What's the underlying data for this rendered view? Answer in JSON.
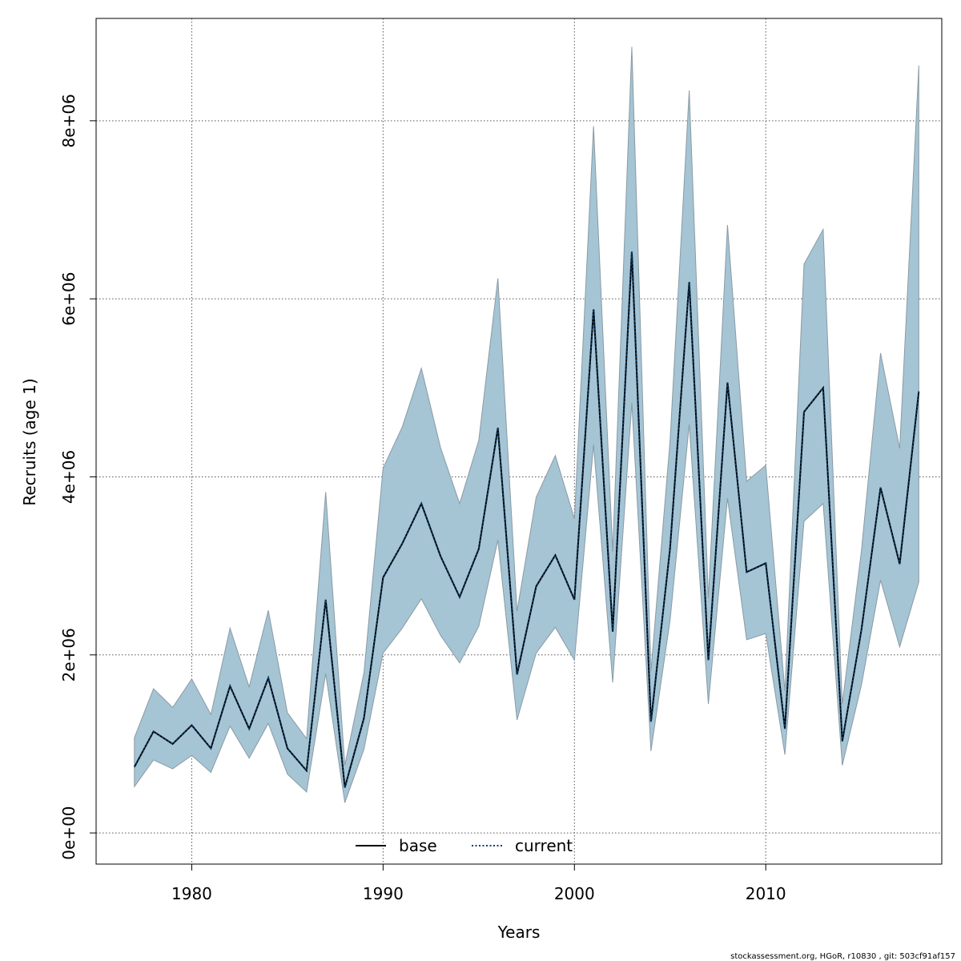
{
  "chart_data": {
    "type": "area",
    "xlabel": "Years",
    "ylabel": "Recruits (age 1)",
    "xlim": [
      1975,
      2019.2
    ],
    "ylim": [
      -350000,
      9150000
    ],
    "x_ticks": [
      1980,
      1990,
      2000,
      2010
    ],
    "x_tick_labels": [
      "1980",
      "1990",
      "2000",
      "2010"
    ],
    "y_ticks": [
      0,
      2000000,
      4000000,
      6000000,
      8000000
    ],
    "y_tick_labels": [
      "0e+00",
      "2e+06",
      "4e+06",
      "6e+06",
      "8e+06"
    ],
    "grid": true,
    "legend_position": "bottom-center",
    "years": [
      1977,
      1978,
      1979,
      1980,
      1981,
      1982,
      1983,
      1984,
      1985,
      1986,
      1987,
      1988,
      1989,
      1990,
      1991,
      1992,
      1993,
      1994,
      1995,
      1996,
      1997,
      1998,
      1999,
      2000,
      2001,
      2002,
      2003,
      2004,
      2005,
      2006,
      2007,
      2008,
      2009,
      2010,
      2011,
      2012,
      2013,
      2014,
      2015,
      2016,
      2017,
      2018
    ],
    "series": [
      {
        "name": "base",
        "color": "#000000",
        "dash": "solid",
        "values": [
          740000,
          1140000,
          1000000,
          1210000,
          950000,
          1650000,
          1170000,
          1740000,
          950000,
          700000,
          2620000,
          510000,
          1290000,
          2870000,
          3250000,
          3700000,
          3110000,
          2650000,
          3190000,
          4550000,
          1780000,
          2770000,
          3120000,
          2620000,
          5880000,
          2260000,
          6530000,
          1250000,
          3200000,
          6190000,
          1940000,
          5060000,
          2930000,
          3030000,
          1170000,
          4730000,
          5000000,
          1030000,
          2280000,
          3880000,
          3020000,
          4960000
        ]
      },
      {
        "name": "current",
        "color": "#0b3d6b",
        "dash": "dotted",
        "values": [
          740000,
          1140000,
          1000000,
          1210000,
          950000,
          1650000,
          1170000,
          1740000,
          950000,
          700000,
          2620000,
          510000,
          1290000,
          2870000,
          3250000,
          3700000,
          3110000,
          2650000,
          3190000,
          4550000,
          1780000,
          2770000,
          3120000,
          2620000,
          5880000,
          2260000,
          6530000,
          1250000,
          3200000,
          6190000,
          1940000,
          5060000,
          2930000,
          3030000,
          1170000,
          4730000,
          5000000,
          1030000,
          2280000,
          3880000,
          3020000,
          4960000
        ]
      }
    ],
    "interval": {
      "color": "#a5c4d4",
      "edge_color": "#8a9ba5",
      "upper": [
        1070000,
        1620000,
        1410000,
        1730000,
        1330000,
        2300000,
        1640000,
        2500000,
        1350000,
        1060000,
        3830000,
        760000,
        1800000,
        4100000,
        4560000,
        5220000,
        4330000,
        3700000,
        4410000,
        6230000,
        2490000,
        3770000,
        4240000,
        3530000,
        7940000,
        3160000,
        8830000,
        1820000,
        4410000,
        8340000,
        2640000,
        6830000,
        3950000,
        4130000,
        1590000,
        6390000,
        6780000,
        1450000,
        3170000,
        5390000,
        4320000,
        8620000
      ],
      "lower": [
        520000,
        820000,
        720000,
        870000,
        680000,
        1200000,
        840000,
        1230000,
        660000,
        460000,
        1790000,
        340000,
        940000,
        2020000,
        2300000,
        2630000,
        2220000,
        1910000,
        2320000,
        3290000,
        1270000,
        2020000,
        2310000,
        1940000,
        4360000,
        1690000,
        4830000,
        920000,
        2390000,
        4590000,
        1450000,
        3760000,
        2170000,
        2240000,
        880000,
        3500000,
        3700000,
        760000,
        1660000,
        2840000,
        2090000,
        2820000
      ]
    }
  },
  "legend": {
    "items": [
      {
        "label": "base",
        "color": "#000000",
        "dash": "solid"
      },
      {
        "label": "current",
        "color": "#0b3d6b",
        "dash": "dotted"
      }
    ]
  },
  "footer": {
    "credit": "stockassessment.org, HGoR, r10830 , git: 503cf91af157"
  }
}
